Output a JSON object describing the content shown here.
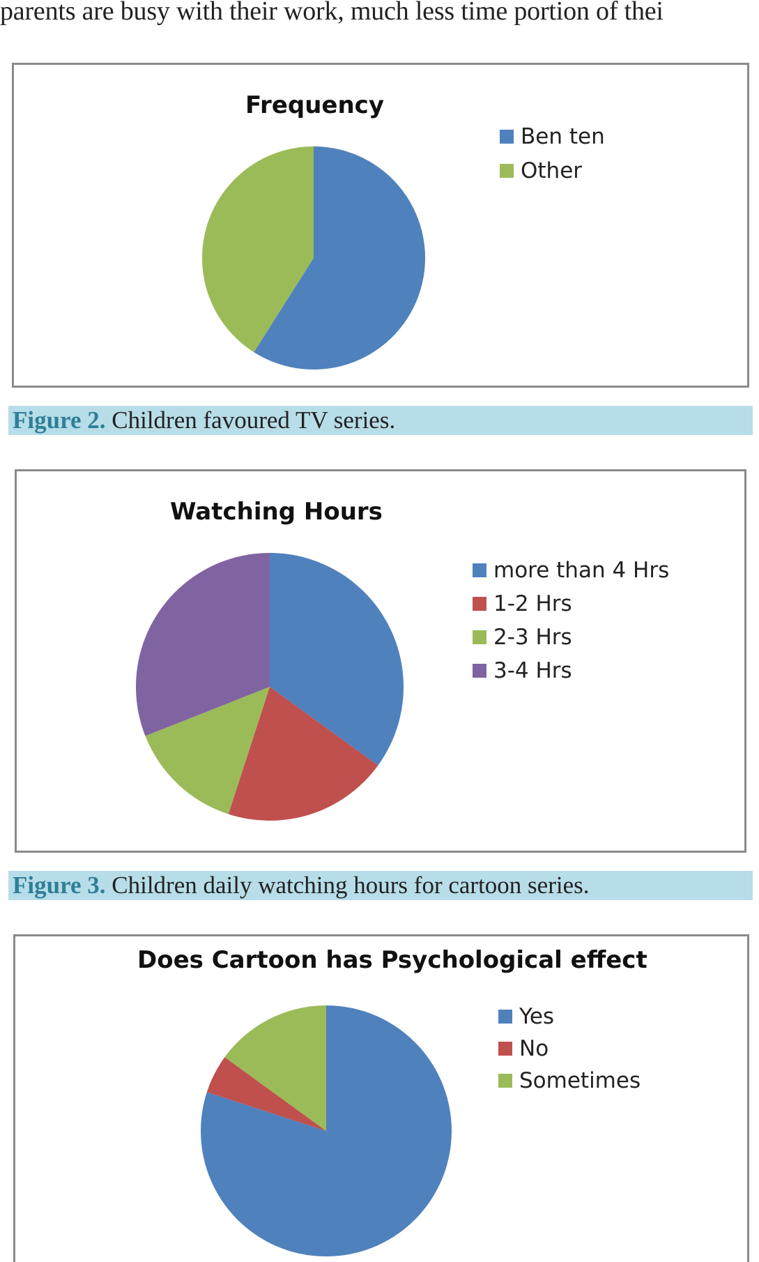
{
  "body_text": "parents are busy with their work, much less time portion of thei",
  "figures": [
    {
      "caption_label": "Figure 2.",
      "caption_text": " Children favoured TV  series."
    },
    {
      "caption_label": "Figure 3.",
      "caption_text": " Children daily watching hours for cartoon series."
    }
  ],
  "chart_data": [
    {
      "type": "pie",
      "title": "Frequency",
      "legend_position": "right",
      "slices": [
        {
          "name": "Ben ten",
          "value": 59,
          "color": "#4f81bd"
        },
        {
          "name": "Other",
          "value": 41,
          "color": "#9bbb59"
        }
      ]
    },
    {
      "type": "pie",
      "title": "Watching Hours",
      "legend_position": "right",
      "slices": [
        {
          "name": "more than 4 Hrs",
          "value": 35,
          "color": "#4f81bd"
        },
        {
          "name": "1-2 Hrs",
          "value": 20,
          "color": "#c0504d"
        },
        {
          "name": "2-3 Hrs",
          "value": 14,
          "color": "#9bbb59"
        },
        {
          "name": "3-4 Hrs",
          "value": 31,
          "color": "#8064a2"
        }
      ]
    },
    {
      "type": "pie",
      "title": "Does Cartoon has Psychological effect",
      "legend_position": "right",
      "slices": [
        {
          "name": "Yes",
          "value": 80,
          "color": "#4f81bd"
        },
        {
          "name": "No",
          "value": 5,
          "color": "#c0504d"
        },
        {
          "name": "Sometimes",
          "value": 15,
          "color": "#9bbb59"
        }
      ]
    }
  ]
}
